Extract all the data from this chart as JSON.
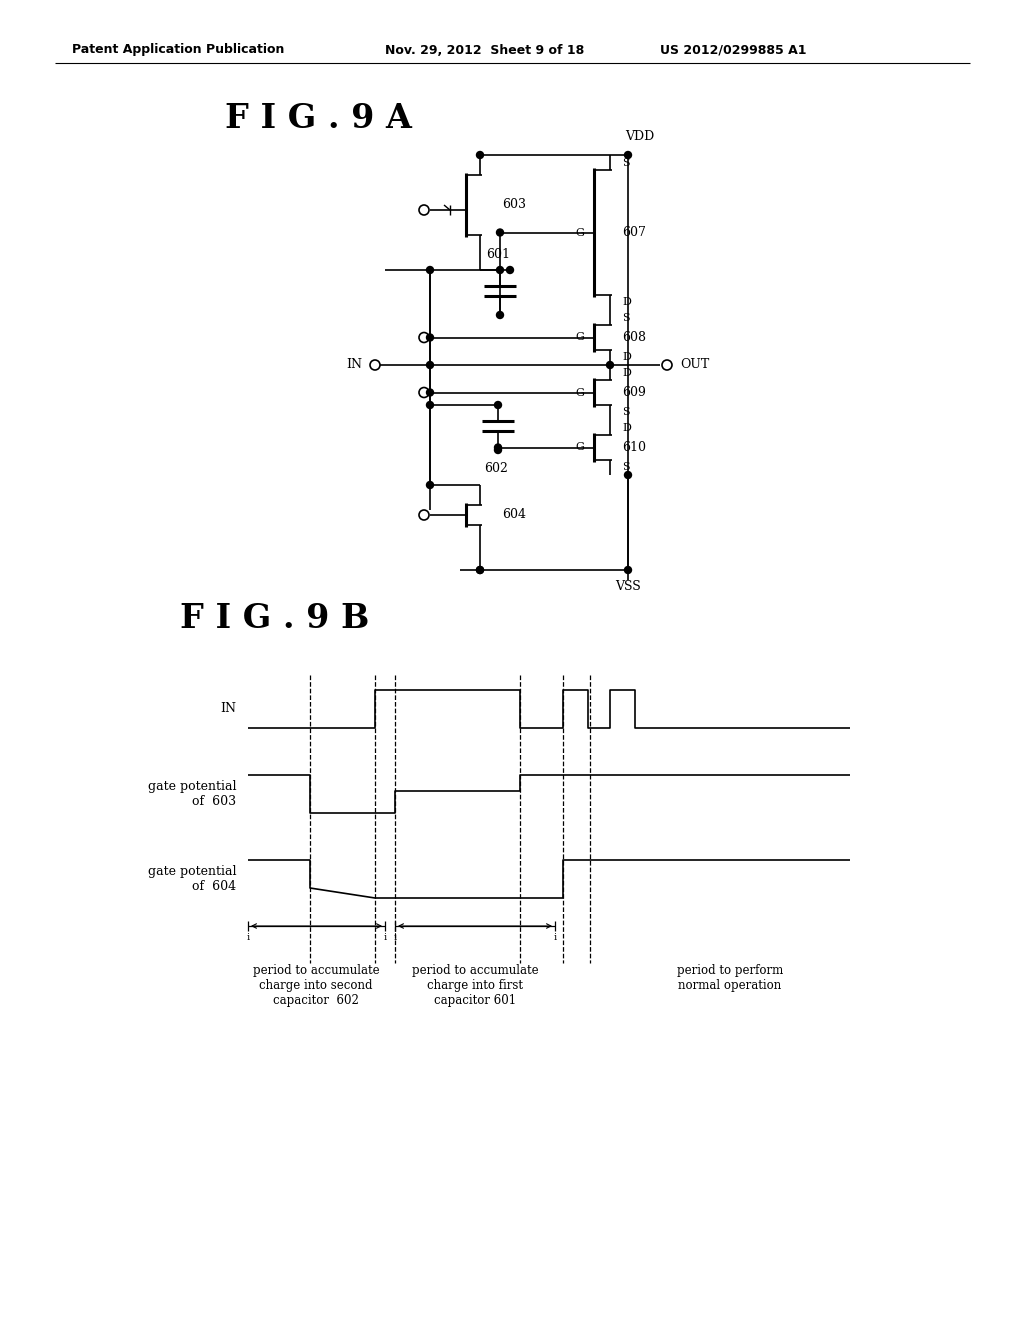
{
  "bg_color": "#ffffff",
  "header_text": "Patent Application Publication",
  "header_date": "Nov. 29, 2012  Sheet 9 of 18",
  "header_patent": "US 2012/0299885 A1",
  "fig9a_label": "F I G . 9 A",
  "fig9b_label": "F I G . 9 B",
  "vdd_label": "VDD",
  "vss_label": "VSS",
  "in_label": "IN",
  "out_label": "OUT",
  "timing_labels_left": [
    "IN",
    "gate potential\nof  603",
    "gate potential\nof  604"
  ],
  "period_labels": [
    "period to accumulate\ncharge into second\ncapacitor  602",
    "period to accumulate\ncharge into first\ncapacitor 601",
    "period to perform\nnormal operation"
  ]
}
